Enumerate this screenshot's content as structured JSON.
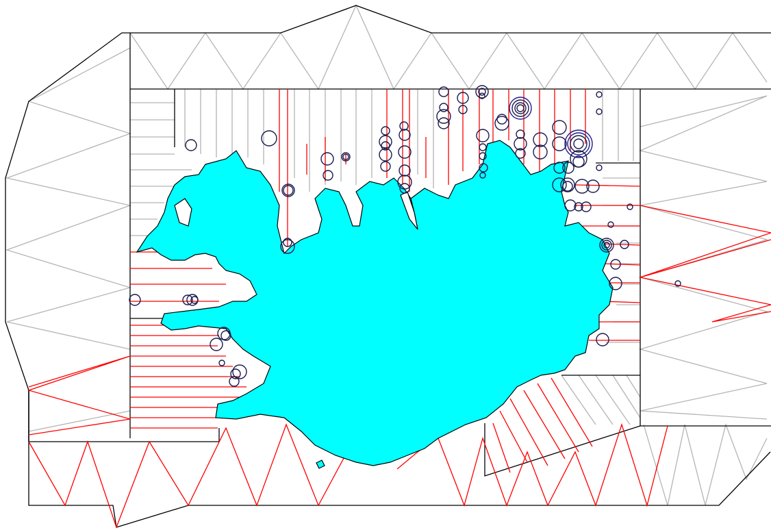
{
  "map": {
    "colors": {
      "land": "#00ffff",
      "coastline": "#000000",
      "survey_track": "#ff0000",
      "planned_track": "#b4b4b4",
      "stratum_border": "#000000",
      "catch_circle": "#1a1a4e",
      "catch_circle_large": "#1c1c8a"
    },
    "layers": [
      "stratum-boundaries",
      "planned-transects",
      "survey-tracks",
      "land",
      "catch-circles"
    ],
    "catch_circle_levels": [
      "small",
      "medium",
      "large",
      "very-large"
    ]
  }
}
